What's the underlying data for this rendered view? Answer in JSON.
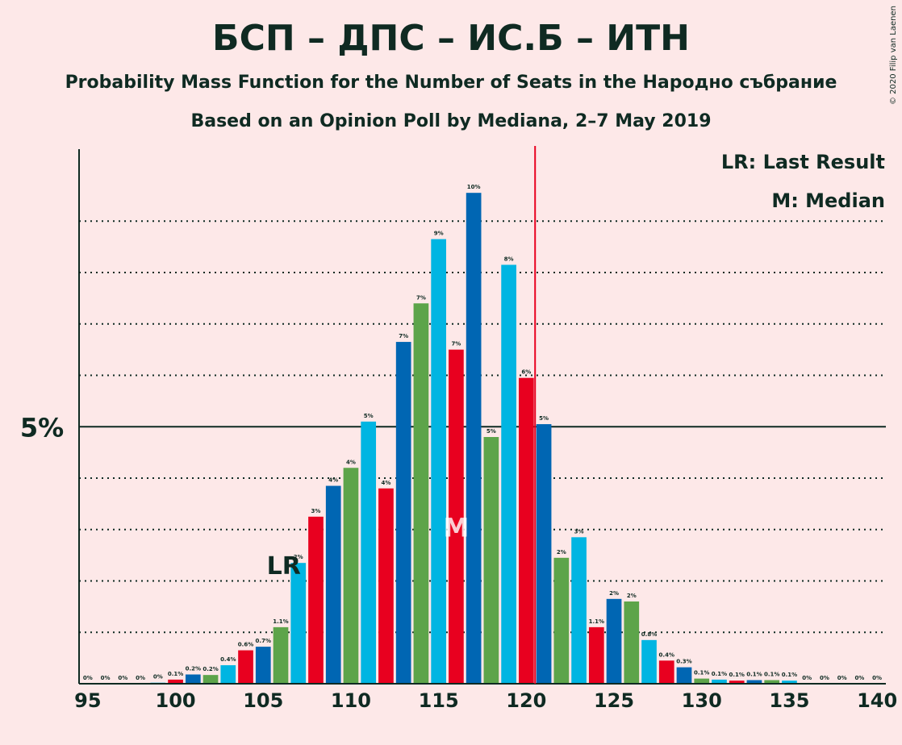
{
  "title": "БСП – ДПС – ИС.Б – ИТН",
  "subtitle": "Probability Mass Function for the Number of Seats in the Народно събрание",
  "subtitle2": "Based on an Opinion Poll by Mediana, 2–7 May 2019",
  "copyright": "© 2020 Filip van Laenen",
  "legend": {
    "lr": "LR: Last Result",
    "median": "M: Median"
  },
  "markers": {
    "lr_label": "LR",
    "median_label": "M"
  },
  "colors": {
    "red": "#E8001F",
    "blue": "#0066B3",
    "green": "#5DA44A",
    "cyan": "#00B5E2",
    "background": "#FDE8E8",
    "text": "#0F2A22"
  },
  "chart_data": {
    "type": "bar",
    "x": [
      95,
      96,
      97,
      98,
      99,
      100,
      101,
      102,
      103,
      104,
      105,
      106,
      107,
      108,
      109,
      110,
      111,
      112,
      113,
      114,
      115,
      116,
      117,
      118,
      119,
      120,
      121,
      122,
      123,
      124,
      125,
      126,
      127,
      128,
      129,
      130,
      131,
      132,
      133,
      134,
      135,
      136,
      137,
      138,
      139,
      140
    ],
    "values": [
      0,
      0,
      0,
      0,
      0.02,
      0.08,
      0.18,
      0.17,
      0.36,
      0.65,
      0.72,
      1.1,
      2.35,
      3.25,
      3.85,
      4.2,
      5.1,
      3.8,
      6.65,
      7.4,
      8.65,
      6.5,
      9.55,
      4.8,
      8.15,
      5.95,
      5.05,
      2.45,
      2.85,
      1.1,
      1.65,
      1.6,
      0.85,
      0.45,
      0.32,
      0.1,
      0.08,
      0.06,
      0.07,
      0.07,
      0.06,
      0,
      0,
      0,
      0,
      0
    ],
    "labels": [
      "0%",
      "0%",
      "0%",
      "0%",
      "0%",
      "0.1%",
      "0.2%",
      "0.2%",
      "0.4%",
      "0.6%",
      "0.7%",
      "1.1%",
      "2%",
      "3%",
      "4%",
      "4%",
      "5%",
      "4%",
      "7%",
      "7%",
      "9%",
      "7%",
      "10%",
      "5%",
      "8%",
      "6%",
      "5%",
      "2%",
      "3%",
      "1.1%",
      "2%",
      "2%",
      "0.8%",
      "0.4%",
      "0.3%",
      "0.1%",
      "0.1%",
      "0.1%",
      "0.1%",
      "0.1%",
      "0.1%",
      "0%",
      "0%",
      "0%",
      "0%",
      "0%"
    ],
    "bar_colors": [
      "red",
      "blue",
      "green",
      "cyan",
      "cyan",
      "red",
      "blue",
      "green",
      "cyan",
      "red",
      "blue",
      "green",
      "cyan",
      "red",
      "blue",
      "green",
      "cyan",
      "red",
      "blue",
      "green",
      "cyan",
      "red",
      "blue",
      "green",
      "cyan",
      "red",
      "blue",
      "green",
      "cyan",
      "red",
      "blue",
      "green",
      "cyan",
      "red",
      "blue",
      "green",
      "cyan",
      "red",
      "blue",
      "green",
      "cyan",
      "red",
      "blue",
      "green",
      "cyan",
      "red"
    ],
    "x_ticks": [
      95,
      100,
      105,
      110,
      115,
      120,
      125,
      130,
      135,
      140
    ],
    "x_tick_labels": [
      "95",
      "100",
      "105",
      "110",
      "115",
      "120",
      "125",
      "130",
      "135",
      "140"
    ],
    "y_major_tick": 5,
    "y_major_label": "5%",
    "y_gridlines": [
      1,
      2,
      3,
      4,
      6,
      7,
      8,
      9
    ],
    "ylim": [
      0,
      10.4
    ],
    "xlim": [
      94.5,
      140.5
    ],
    "last_result": 107,
    "median": 116,
    "majority_line": 121,
    "grid": true
  }
}
